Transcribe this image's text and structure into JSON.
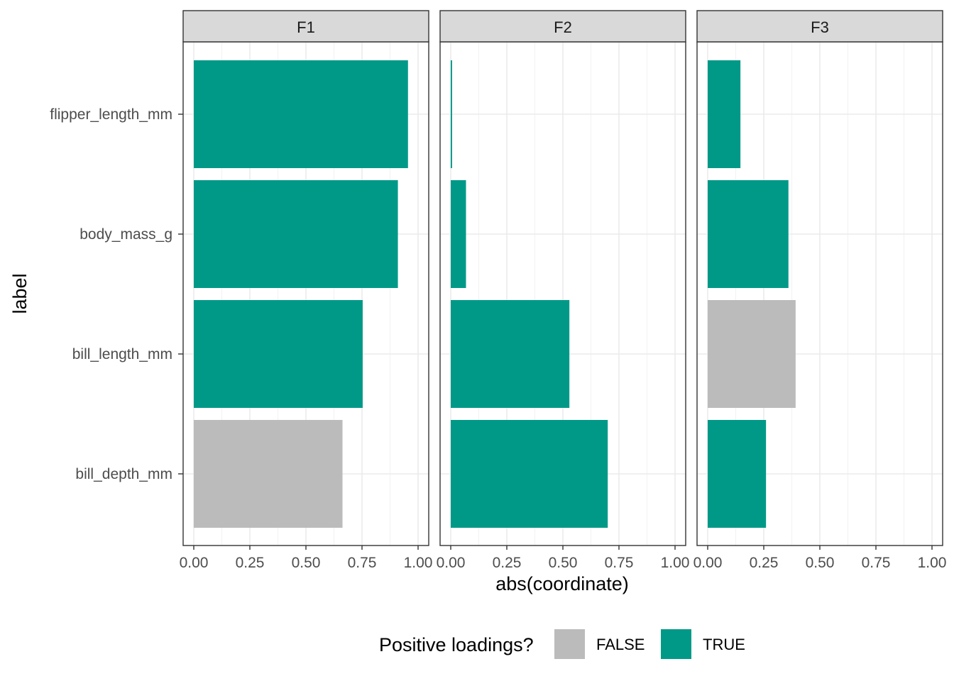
{
  "chart_data": {
    "type": "bar",
    "orientation": "horizontal",
    "facet_var": "component",
    "facets": [
      "F1",
      "F2",
      "F3"
    ],
    "categories": [
      "flipper_length_mm",
      "body_mass_g",
      "bill_length_mm",
      "bill_depth_mm"
    ],
    "values": {
      "F1": [
        0.955,
        0.91,
        0.753,
        0.663
      ],
      "F2": [
        0.006,
        0.068,
        0.529,
        0.7
      ],
      "F3": [
        0.146,
        0.36,
        0.392,
        0.26
      ]
    },
    "positive": {
      "F1": [
        "TRUE",
        "TRUE",
        "TRUE",
        "FALSE"
      ],
      "F2": [
        "TRUE",
        "TRUE",
        "TRUE",
        "TRUE"
      ],
      "F3": [
        "TRUE",
        "TRUE",
        "FALSE",
        "TRUE"
      ]
    },
    "xlabel": "abs(coordinate)",
    "ylabel": "label",
    "xlim": [
      0,
      1
    ],
    "xticks": [
      "0.00",
      "0.25",
      "0.50",
      "0.75",
      "1.00"
    ],
    "grid": true,
    "legend": {
      "title": "Positive loadings?",
      "position": "bottom",
      "entries": [
        {
          "label": "FALSE",
          "color": "#bbbbbb"
        },
        {
          "label": "TRUE",
          "color": "#009988"
        }
      ]
    },
    "colors": {
      "TRUE": "#009988",
      "FALSE": "#bbbbbb"
    }
  }
}
